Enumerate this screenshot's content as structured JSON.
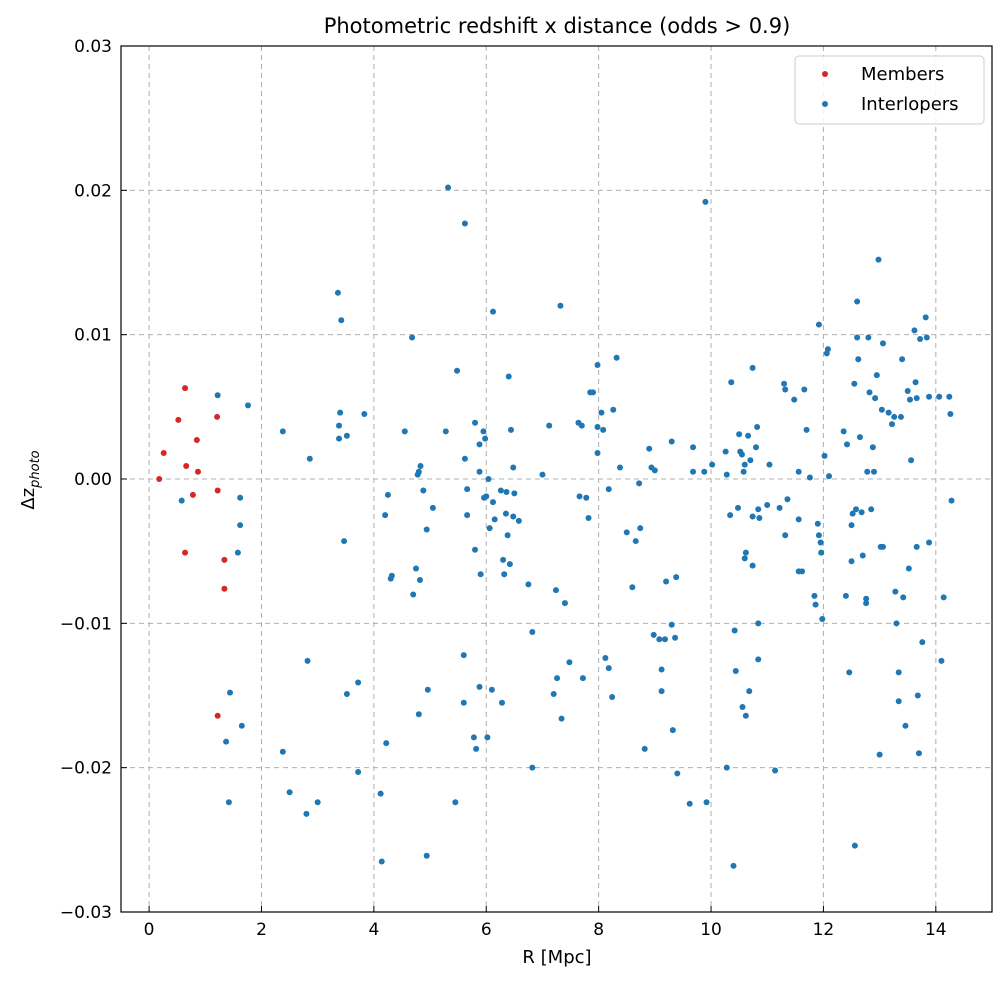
{
  "chart_data": {
    "type": "scatter",
    "title": "Photometric redshift x distance (odds > 0.9)",
    "xlabel": "R [Mpc]",
    "ylabel_main": "Δz",
    "ylabel_sub": "photo",
    "xlim": [
      -0.5,
      15
    ],
    "ylim": [
      -0.03,
      0.03
    ],
    "xticks": [
      0,
      2,
      4,
      6,
      8,
      10,
      12,
      14
    ],
    "yticks": [
      -0.03,
      -0.02,
      -0.01,
      0.0,
      0.01,
      0.02,
      0.03
    ],
    "xtick_labels": [
      "0",
      "2",
      "4",
      "6",
      "8",
      "10",
      "12",
      "14"
    ],
    "ytick_labels": [
      "−0.03",
      "−0.02",
      "−0.01",
      "0.00",
      "0.01",
      "0.02",
      "0.03"
    ],
    "grid": true,
    "legend_position": "top-right",
    "series": [
      {
        "name": "Members",
        "color": "#d62728",
        "points": [
          [
            0.18,
            0.0
          ],
          [
            0.26,
            0.0018
          ],
          [
            0.52,
            0.0041
          ],
          [
            0.64,
            0.0063
          ],
          [
            0.66,
            0.0009
          ],
          [
            0.64,
            -0.0051
          ],
          [
            0.78,
            -0.0011
          ],
          [
            0.85,
            0.0027
          ],
          [
            0.87,
            0.0005
          ],
          [
            1.21,
            0.0043
          ],
          [
            1.22,
            -0.0008
          ],
          [
            1.34,
            -0.0056
          ],
          [
            1.34,
            -0.0076
          ],
          [
            1.22,
            -0.0164
          ]
        ]
      },
      {
        "name": "Interlopers",
        "color": "#1f77b4",
        "points": [
          [
            0.58,
            -0.0015
          ],
          [
            1.22,
            0.0058
          ],
          [
            1.76,
            0.0051
          ],
          [
            1.62,
            -0.0013
          ],
          [
            1.62,
            -0.0032
          ],
          [
            1.58,
            -0.0051
          ],
          [
            1.44,
            -0.0148
          ],
          [
            1.65,
            -0.0171
          ],
          [
            1.37,
            -0.0182
          ],
          [
            1.42,
            -0.0224
          ],
          [
            2.38,
            0.0033
          ],
          [
            2.38,
            -0.0189
          ],
          [
            2.5,
            -0.0217
          ],
          [
            2.82,
            -0.0126
          ],
          [
            2.86,
            0.0014
          ],
          [
            2.8,
            -0.0232
          ],
          [
            3.0,
            -0.0224
          ],
          [
            3.36,
            0.0129
          ],
          [
            3.42,
            0.011
          ],
          [
            3.38,
            0.0037
          ],
          [
            3.4,
            0.0046
          ],
          [
            3.38,
            0.0028
          ],
          [
            3.52,
            0.003
          ],
          [
            3.47,
            -0.0043
          ],
          [
            3.52,
            -0.0149
          ],
          [
            3.72,
            -0.0141
          ],
          [
            3.72,
            -0.0203
          ],
          [
            3.83,
            0.0045
          ],
          [
            4.12,
            -0.0218
          ],
          [
            4.14,
            -0.0265
          ],
          [
            4.2,
            -0.0025
          ],
          [
            4.25,
            -0.0011
          ],
          [
            4.3,
            -0.0069
          ],
          [
            4.22,
            -0.0183
          ],
          [
            4.32,
            -0.0067
          ],
          [
            4.55,
            0.0033
          ],
          [
            4.68,
            0.0098
          ],
          [
            4.7,
            -0.008
          ],
          [
            4.75,
            -0.0062
          ],
          [
            4.8,
            0.0005
          ],
          [
            4.78,
            0.0003
          ],
          [
            4.83,
            0.0009
          ],
          [
            4.82,
            -0.007
          ],
          [
            4.8,
            -0.0163
          ],
          [
            4.88,
            -0.0008
          ],
          [
            4.94,
            -0.0035
          ],
          [
            4.96,
            -0.0146
          ],
          [
            4.94,
            -0.0261
          ],
          [
            5.05,
            -0.002
          ],
          [
            5.28,
            0.0033
          ],
          [
            5.32,
            0.0202
          ],
          [
            5.45,
            -0.0224
          ],
          [
            5.48,
            0.0075
          ],
          [
            5.62,
            0.0177
          ],
          [
            5.6,
            -0.0122
          ],
          [
            5.6,
            -0.0155
          ],
          [
            5.62,
            0.0014
          ],
          [
            5.66,
            -0.0007
          ],
          [
            5.66,
            -0.0025
          ],
          [
            5.78,
            -0.0179
          ],
          [
            5.8,
            0.0039
          ],
          [
            5.8,
            -0.0049
          ],
          [
            5.82,
            -0.0187
          ],
          [
            5.88,
            -0.0144
          ],
          [
            5.88,
            0.0024
          ],
          [
            5.88,
            0.0005
          ],
          [
            5.9,
            -0.0066
          ],
          [
            5.95,
            0.0033
          ],
          [
            5.96,
            -0.0013
          ],
          [
            5.98,
            0.0028
          ],
          [
            6.0,
            -0.0012
          ],
          [
            6.02,
            -0.0179
          ],
          [
            6.04,
            0.0
          ],
          [
            6.06,
            -0.0034
          ],
          [
            6.1,
            -0.0146
          ],
          [
            6.12,
            0.0116
          ],
          [
            6.15,
            -0.0028
          ],
          [
            6.12,
            -0.0016
          ],
          [
            6.26,
            -0.0008
          ],
          [
            6.28,
            -0.0155
          ],
          [
            6.3,
            -0.0056
          ],
          [
            6.32,
            -0.0066
          ],
          [
            6.35,
            -0.0024
          ],
          [
            6.36,
            -0.0009
          ],
          [
            6.38,
            -0.0039
          ],
          [
            6.4,
            0.0071
          ],
          [
            6.42,
            -0.0059
          ],
          [
            6.44,
            0.0034
          ],
          [
            6.48,
            -0.0026
          ],
          [
            6.48,
            0.0008
          ],
          [
            6.5,
            -0.001
          ],
          [
            6.58,
            -0.0029
          ],
          [
            6.75,
            -0.0073
          ],
          [
            6.82,
            -0.0106
          ],
          [
            6.82,
            -0.02
          ],
          [
            7.0,
            0.0003
          ],
          [
            7.12,
            0.0037
          ],
          [
            7.2,
            -0.0149
          ],
          [
            7.24,
            -0.0077
          ],
          [
            7.26,
            -0.0138
          ],
          [
            7.32,
            0.012
          ],
          [
            7.34,
            -0.0166
          ],
          [
            7.4,
            -0.0086
          ],
          [
            7.48,
            -0.0127
          ],
          [
            7.64,
            0.0039
          ],
          [
            7.66,
            -0.0012
          ],
          [
            7.7,
            0.0037
          ],
          [
            7.72,
            -0.0138
          ],
          [
            7.78,
            -0.0013
          ],
          [
            7.82,
            -0.0027
          ],
          [
            7.85,
            0.006
          ],
          [
            7.9,
            0.006
          ],
          [
            7.98,
            0.0079
          ],
          [
            7.98,
            0.0036
          ],
          [
            7.98,
            0.0018
          ],
          [
            8.05,
            0.0046
          ],
          [
            8.08,
            0.0034
          ],
          [
            8.12,
            -0.0124
          ],
          [
            8.18,
            -0.0007
          ],
          [
            8.18,
            -0.0131
          ],
          [
            8.24,
            -0.0151
          ],
          [
            8.26,
            0.0048
          ],
          [
            8.32,
            0.0084
          ],
          [
            8.38,
            0.0008
          ],
          [
            8.5,
            -0.0037
          ],
          [
            8.6,
            -0.0075
          ],
          [
            8.66,
            -0.0043
          ],
          [
            8.72,
            -0.0003
          ],
          [
            8.74,
            -0.0034
          ],
          [
            8.82,
            -0.0187
          ],
          [
            8.9,
            0.0021
          ],
          [
            8.94,
            0.0008
          ],
          [
            8.98,
            -0.0108
          ],
          [
            9.0,
            0.0006
          ],
          [
            9.08,
            -0.0111
          ],
          [
            9.12,
            -0.0147
          ],
          [
            9.12,
            -0.0132
          ],
          [
            9.18,
            -0.0111
          ],
          [
            9.2,
            -0.0071
          ],
          [
            9.3,
            0.0026
          ],
          [
            9.3,
            -0.0101
          ],
          [
            9.32,
            -0.0174
          ],
          [
            9.36,
            -0.011
          ],
          [
            9.38,
            -0.0068
          ],
          [
            9.4,
            -0.0204
          ],
          [
            9.62,
            -0.0225
          ],
          [
            9.68,
            0.0005
          ],
          [
            9.68,
            0.0022
          ],
          [
            9.88,
            0.0005
          ],
          [
            9.9,
            0.0192
          ],
          [
            9.92,
            -0.0224
          ],
          [
            10.02,
            0.001
          ],
          [
            10.28,
            0.0003
          ],
          [
            10.26,
            0.0019
          ],
          [
            10.28,
            -0.02
          ],
          [
            10.34,
            -0.0025
          ],
          [
            10.36,
            0.0067
          ],
          [
            10.4,
            -0.0268
          ],
          [
            10.42,
            -0.0105
          ],
          [
            10.44,
            -0.0133
          ],
          [
            10.48,
            -0.002
          ],
          [
            10.5,
            0.0031
          ],
          [
            10.52,
            0.0019
          ],
          [
            10.55,
            0.0017
          ],
          [
            10.58,
            0.0005
          ],
          [
            10.6,
            0.001
          ],
          [
            10.56,
            -0.0158
          ],
          [
            10.6,
            -0.0055
          ],
          [
            10.62,
            -0.0051
          ],
          [
            10.62,
            -0.0164
          ],
          [
            10.66,
            0.003
          ],
          [
            10.68,
            -0.0147
          ],
          [
            10.7,
            0.0013
          ],
          [
            10.74,
            -0.0026
          ],
          [
            10.74,
            0.0077
          ],
          [
            10.74,
            -0.006
          ],
          [
            10.8,
            0.0022
          ],
          [
            10.84,
            -0.0021
          ],
          [
            10.86,
            -0.0027
          ],
          [
            10.84,
            -0.01
          ],
          [
            10.84,
            -0.0125
          ],
          [
            10.82,
            0.0036
          ],
          [
            11.0,
            -0.0018
          ],
          [
            11.04,
            0.001
          ],
          [
            11.14,
            -0.0202
          ],
          [
            11.22,
            -0.002
          ],
          [
            11.3,
            0.0066
          ],
          [
            11.32,
            0.0062
          ],
          [
            11.32,
            -0.0039
          ],
          [
            11.36,
            -0.0014
          ],
          [
            11.48,
            0.0055
          ],
          [
            11.56,
            0.0005
          ],
          [
            11.56,
            -0.0028
          ],
          [
            11.56,
            -0.0064
          ],
          [
            11.62,
            -0.0064
          ],
          [
            11.66,
            0.0062
          ],
          [
            11.7,
            0.0034
          ],
          [
            11.76,
            0.0001
          ],
          [
            11.84,
            -0.0081
          ],
          [
            11.86,
            -0.0087
          ],
          [
            11.9,
            -0.0031
          ],
          [
            11.92,
            0.0107
          ],
          [
            11.92,
            -0.0039
          ],
          [
            11.95,
            -0.0044
          ],
          [
            11.96,
            -0.0051
          ],
          [
            11.98,
            -0.0097
          ],
          [
            12.02,
            0.0016
          ],
          [
            12.06,
            0.0087
          ],
          [
            12.08,
            0.009
          ],
          [
            12.1,
            0.0002
          ],
          [
            12.36,
            0.0033
          ],
          [
            12.4,
            -0.0081
          ],
          [
            12.42,
            0.0024
          ],
          [
            12.46,
            -0.0134
          ],
          [
            12.5,
            -0.0032
          ],
          [
            12.5,
            -0.0057
          ],
          [
            12.52,
            -0.0024
          ],
          [
            12.55,
            0.0066
          ],
          [
            12.56,
            -0.0254
          ],
          [
            12.58,
            -0.0021
          ],
          [
            12.6,
            0.0098
          ],
          [
            12.6,
            0.0123
          ],
          [
            12.62,
            0.0083
          ],
          [
            12.65,
            0.0029
          ],
          [
            12.68,
            -0.0023
          ],
          [
            12.7,
            -0.0053
          ],
          [
            12.76,
            -0.0083
          ],
          [
            12.76,
            -0.0086
          ],
          [
            12.78,
            0.0005
          ],
          [
            12.8,
            0.0098
          ],
          [
            12.82,
            0.006
          ],
          [
            12.85,
            -0.0021
          ],
          [
            12.88,
            0.0022
          ],
          [
            12.9,
            0.0005
          ],
          [
            12.92,
            0.0056
          ],
          [
            12.95,
            0.0072
          ],
          [
            12.98,
            0.0152
          ],
          [
            13.0,
            -0.0191
          ],
          [
            13.04,
            0.0048
          ],
          [
            13.06,
            0.0094
          ],
          [
            13.06,
            -0.0047
          ],
          [
            13.16,
            0.0046
          ],
          [
            13.22,
            0.0038
          ],
          [
            13.26,
            0.0043
          ],
          [
            13.28,
            -0.0078
          ],
          [
            13.3,
            -0.01
          ],
          [
            13.34,
            -0.0134
          ],
          [
            13.34,
            -0.0154
          ],
          [
            13.38,
            0.0043
          ],
          [
            13.4,
            0.0083
          ],
          [
            13.42,
            -0.0082
          ],
          [
            13.46,
            -0.0171
          ],
          [
            13.5,
            0.0061
          ],
          [
            13.52,
            -0.0062
          ],
          [
            13.56,
            0.0013
          ],
          [
            13.62,
            0.0103
          ],
          [
            13.64,
            0.0067
          ],
          [
            13.66,
            -0.0047
          ],
          [
            13.66,
            0.0056
          ],
          [
            13.68,
            -0.015
          ],
          [
            13.7,
            -0.019
          ],
          [
            13.72,
            0.0097
          ],
          [
            13.76,
            -0.0113
          ],
          [
            13.82,
            0.0112
          ],
          [
            13.84,
            0.0098
          ],
          [
            13.88,
            -0.0044
          ],
          [
            13.88,
            0.0057
          ],
          [
            14.06,
            0.0057
          ],
          [
            14.1,
            -0.0126
          ],
          [
            14.14,
            -0.0082
          ],
          [
            14.24,
            0.0057
          ],
          [
            14.26,
            0.0045
          ],
          [
            14.28,
            -0.0015
          ],
          [
            13.54,
            0.0055
          ],
          [
            13.02,
            -0.0047
          ]
        ]
      }
    ]
  }
}
